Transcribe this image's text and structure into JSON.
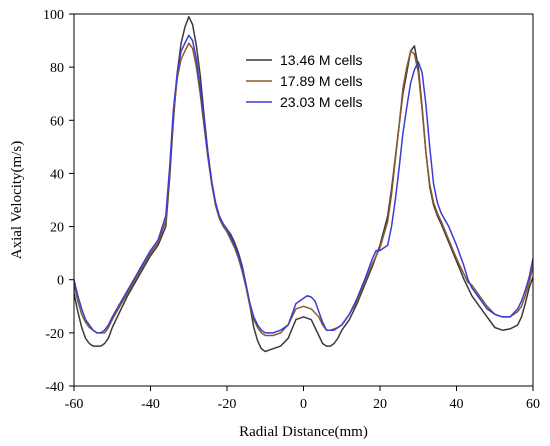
{
  "chart_data": {
    "type": "line",
    "xlabel": "Radial Distance(mm)",
    "ylabel": "Axial Velocity(m/s)",
    "xlim": [
      -60,
      60
    ],
    "ylim": [
      -40,
      100
    ],
    "xticks": [
      -60,
      -40,
      -20,
      0,
      20,
      40,
      60
    ],
    "yticks": [
      -40,
      -20,
      0,
      20,
      40,
      60,
      80,
      100
    ],
    "legend_position": "top-center",
    "series": [
      {
        "name": "13.46 M cells",
        "color": "#3a3a3a",
        "x": [
          -60,
          -59,
          -58,
          -57,
          -56,
          -55,
          -54,
          -53,
          -52,
          -51,
          -50,
          -48,
          -46,
          -44,
          -42,
          -40,
          -38,
          -36,
          -35,
          -34,
          -33,
          -32,
          -31,
          -30,
          -29,
          -28,
          -27,
          -26,
          -25,
          -24,
          -23,
          -22,
          -21,
          -20,
          -19,
          -18,
          -17,
          -16,
          -15,
          -14,
          -13,
          -12,
          -11,
          -10,
          -9,
          -8,
          -6,
          -4,
          -2,
          0,
          2,
          4,
          5,
          6,
          7,
          8,
          9,
          10,
          11,
          12,
          14,
          16,
          18,
          20,
          22,
          23,
          24,
          25,
          26,
          27,
          28,
          29,
          30,
          31,
          32,
          33,
          34,
          35,
          36,
          38,
          40,
          42,
          43,
          44,
          46,
          48,
          50,
          52,
          54,
          56,
          57,
          58,
          59,
          60
        ],
        "y": [
          -5,
          -12,
          -18,
          -22,
          -24,
          -25,
          -25,
          -25,
          -24,
          -22,
          -18,
          -12,
          -6,
          -1,
          4,
          9,
          13,
          20,
          38,
          60,
          78,
          89,
          95,
          99,
          96,
          88,
          77,
          62,
          48,
          37,
          29,
          24,
          21,
          19,
          17,
          14,
          10,
          5,
          -2,
          -10,
          -18,
          -23,
          -26,
          -27,
          -26.5,
          -26,
          -25,
          -22,
          -15,
          -14,
          -15,
          -21,
          -24,
          -25,
          -25,
          -24,
          -22,
          -19,
          -17,
          -15,
          -9,
          -2,
          5,
          13,
          24,
          34,
          46,
          58,
          70,
          78,
          86,
          88,
          80,
          65,
          48,
          35,
          28,
          24,
          21,
          14,
          7,
          0,
          -3,
          -6,
          -10,
          -14,
          -18,
          -19,
          -18.5,
          -17,
          -14,
          -9,
          -3,
          1
        ]
      },
      {
        "name": "17.89 M cells",
        "color": "#8b5a2b",
        "x": [
          -60,
          -59,
          -58,
          -57,
          -56,
          -55,
          -54,
          -53,
          -52,
          -51,
          -50,
          -48,
          -46,
          -44,
          -42,
          -40,
          -38,
          -36,
          -35,
          -34,
          -33,
          -32,
          -31,
          -30,
          -29,
          -28,
          -27,
          -26,
          -25,
          -24,
          -23,
          -22,
          -21,
          -20,
          -19,
          -18,
          -17,
          -16,
          -15,
          -14,
          -13,
          -12,
          -11,
          -10,
          -9,
          -8,
          -6,
          -4,
          -2,
          0,
          2,
          4,
          5,
          6,
          7,
          8,
          9,
          10,
          11,
          12,
          14,
          16,
          18,
          20,
          22,
          23,
          24,
          25,
          26,
          27,
          28,
          29,
          30,
          31,
          32,
          33,
          34,
          35,
          36,
          38,
          40,
          42,
          43,
          44,
          46,
          48,
          50,
          52,
          54,
          56,
          57,
          58,
          59,
          60
        ],
        "y": [
          -2,
          -8,
          -13,
          -16,
          -18,
          -19,
          -20,
          -20,
          -20,
          -18,
          -15,
          -10,
          -5,
          0,
          5,
          10,
          14,
          22,
          40,
          62,
          76,
          83,
          86,
          89,
          87,
          80,
          70,
          58,
          46,
          36,
          28,
          23,
          20,
          18,
          15,
          12,
          8,
          3,
          -3,
          -10,
          -15,
          -18,
          -20,
          -21,
          -21,
          -21,
          -20,
          -17,
          -11,
          -10,
          -11,
          -14,
          -17,
          -19,
          -19,
          -18.5,
          -18,
          -17,
          -15,
          -13,
          -8,
          -1,
          6,
          12,
          22,
          32,
          45,
          58,
          72,
          80,
          86,
          85,
          78,
          64,
          48,
          36,
          29,
          25,
          22,
          15,
          8,
          2,
          -1,
          -2,
          -6,
          -10,
          -13,
          -14,
          -14,
          -12,
          -10,
          -6,
          -1,
          5
        ]
      },
      {
        "name": "23.03 M cells",
        "color": "#3b3bd6",
        "x": [
          -60,
          -59,
          -58,
          -57,
          -56,
          -55,
          -54,
          -53,
          -52,
          -51,
          -50,
          -48,
          -46,
          -44,
          -42,
          -40,
          -38,
          -36,
          -35,
          -34,
          -33,
          -32,
          -31,
          -30,
          -29,
          -28,
          -27,
          -26,
          -25,
          -24,
          -23,
          -22,
          -21,
          -20,
          -19,
          -18,
          -17,
          -16,
          -15,
          -14,
          -13,
          -12,
          -11,
          -10,
          -9,
          -8,
          -6,
          -4,
          -2,
          0,
          1,
          2,
          3,
          4,
          5,
          6,
          7,
          8,
          9,
          10,
          11,
          12,
          14,
          16,
          18,
          19,
          20,
          22,
          23,
          24,
          25,
          26,
          27,
          28,
          29,
          30,
          31,
          32,
          33,
          34,
          35,
          36,
          38,
          40,
          42,
          43,
          44,
          46,
          48,
          50,
          52,
          54,
          56,
          57,
          58,
          59,
          60
        ],
        "y": [
          0,
          -6,
          -11,
          -15,
          -17,
          -19,
          -20,
          -20,
          -19,
          -17,
          -14,
          -9,
          -4,
          1,
          6,
          11,
          15,
          24,
          42,
          64,
          78,
          86,
          89,
          92,
          90,
          83,
          72,
          60,
          47,
          37,
          29,
          24,
          21,
          19,
          16,
          13,
          9,
          4,
          -2,
          -9,
          -14,
          -17,
          -19,
          -20,
          -20,
          -20,
          -19,
          -17,
          -9,
          -7,
          -6,
          -6.5,
          -8,
          -12,
          -16,
          -19,
          -19,
          -19,
          -18,
          -17,
          -15,
          -13,
          -7,
          0,
          8,
          11,
          11,
          13,
          20,
          30,
          42,
          55,
          65,
          74,
          79,
          82,
          78,
          66,
          50,
          36,
          29,
          25,
          20,
          13,
          5,
          0,
          -3,
          -7,
          -11,
          -13,
          -14,
          -14,
          -11,
          -8,
          -4,
          1,
          8
        ]
      }
    ]
  }
}
